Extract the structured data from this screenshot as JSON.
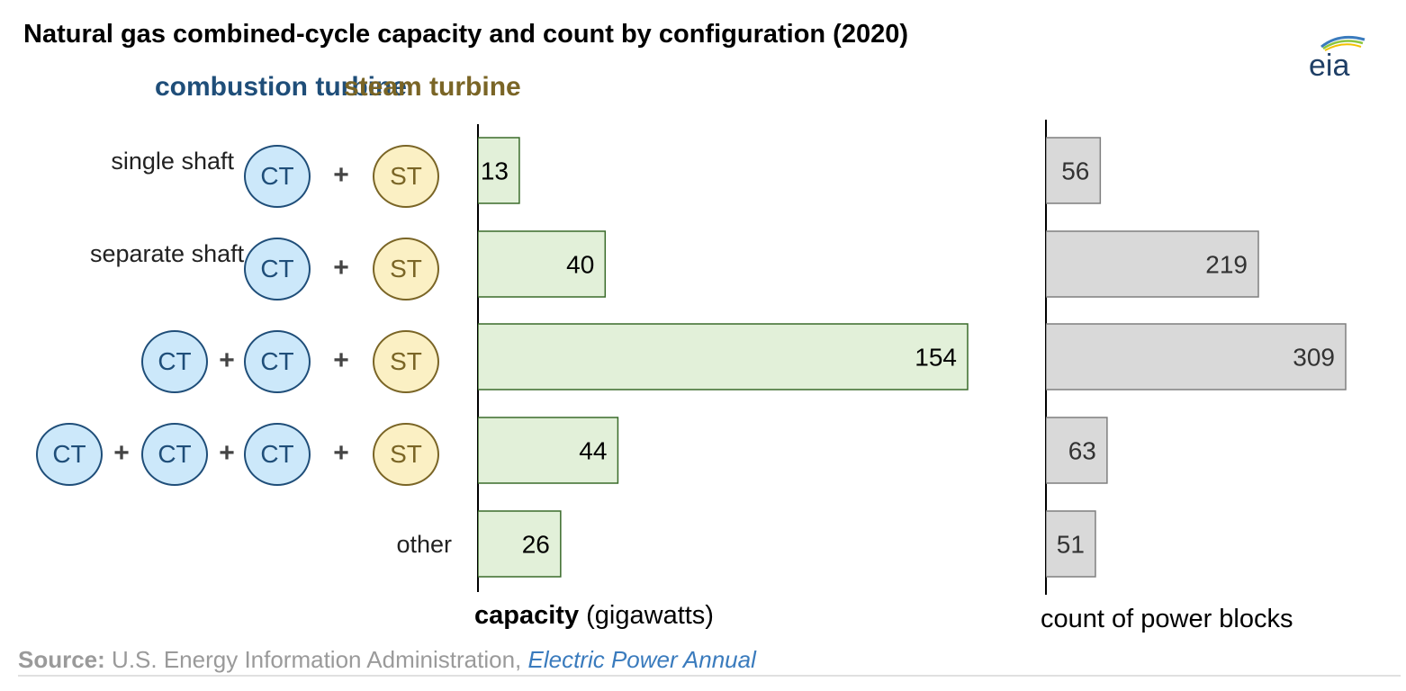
{
  "title": "Natural gas combined-cycle capacity and count by configuration (2020)",
  "logo_text": "eia",
  "headers": {
    "combustion": "combustion turbine",
    "steam": "steam turbine"
  },
  "row_labels": {
    "single_shaft": "single shaft",
    "separate_shaft": "separate shaft",
    "other": "other"
  },
  "units": {
    "ct": "CT",
    "st": "ST",
    "plus": "+"
  },
  "axis_labels": {
    "capacity_bold": "capacity",
    "capacity_unit": "(gigawatts)",
    "count": "count of power blocks"
  },
  "source": {
    "label": "Source:",
    "text": "U.S. Energy Information Administration,",
    "publication": "Electric Power Annual"
  },
  "colors": {
    "ct_fill": "#cce8fa",
    "ct_stroke": "#1f4e79",
    "st_fill": "#fbf0c4",
    "st_stroke": "#7a6526",
    "capacity_fill": "#e2f0d9",
    "capacity_stroke": "#3a6b2a",
    "count_fill": "#d9d9d9",
    "count_stroke": "#7f7f7f"
  },
  "chart_data": [
    {
      "type": "bar",
      "orientation": "horizontal",
      "categories": [
        "single shaft",
        "separate shaft",
        "CT + CT + ST",
        "CT + CT + CT + ST",
        "other"
      ],
      "values": [
        13,
        40,
        154,
        44,
        26
      ],
      "xlabel": "capacity (gigawatts)",
      "xlim": [
        0,
        154
      ]
    },
    {
      "type": "bar",
      "orientation": "horizontal",
      "categories": [
        "single shaft",
        "separate shaft",
        "CT + CT + ST",
        "CT + CT + CT + ST",
        "other"
      ],
      "values": [
        56,
        219,
        309,
        63,
        51
      ],
      "xlabel": "count of power blocks",
      "xlim": [
        0,
        309
      ]
    }
  ]
}
